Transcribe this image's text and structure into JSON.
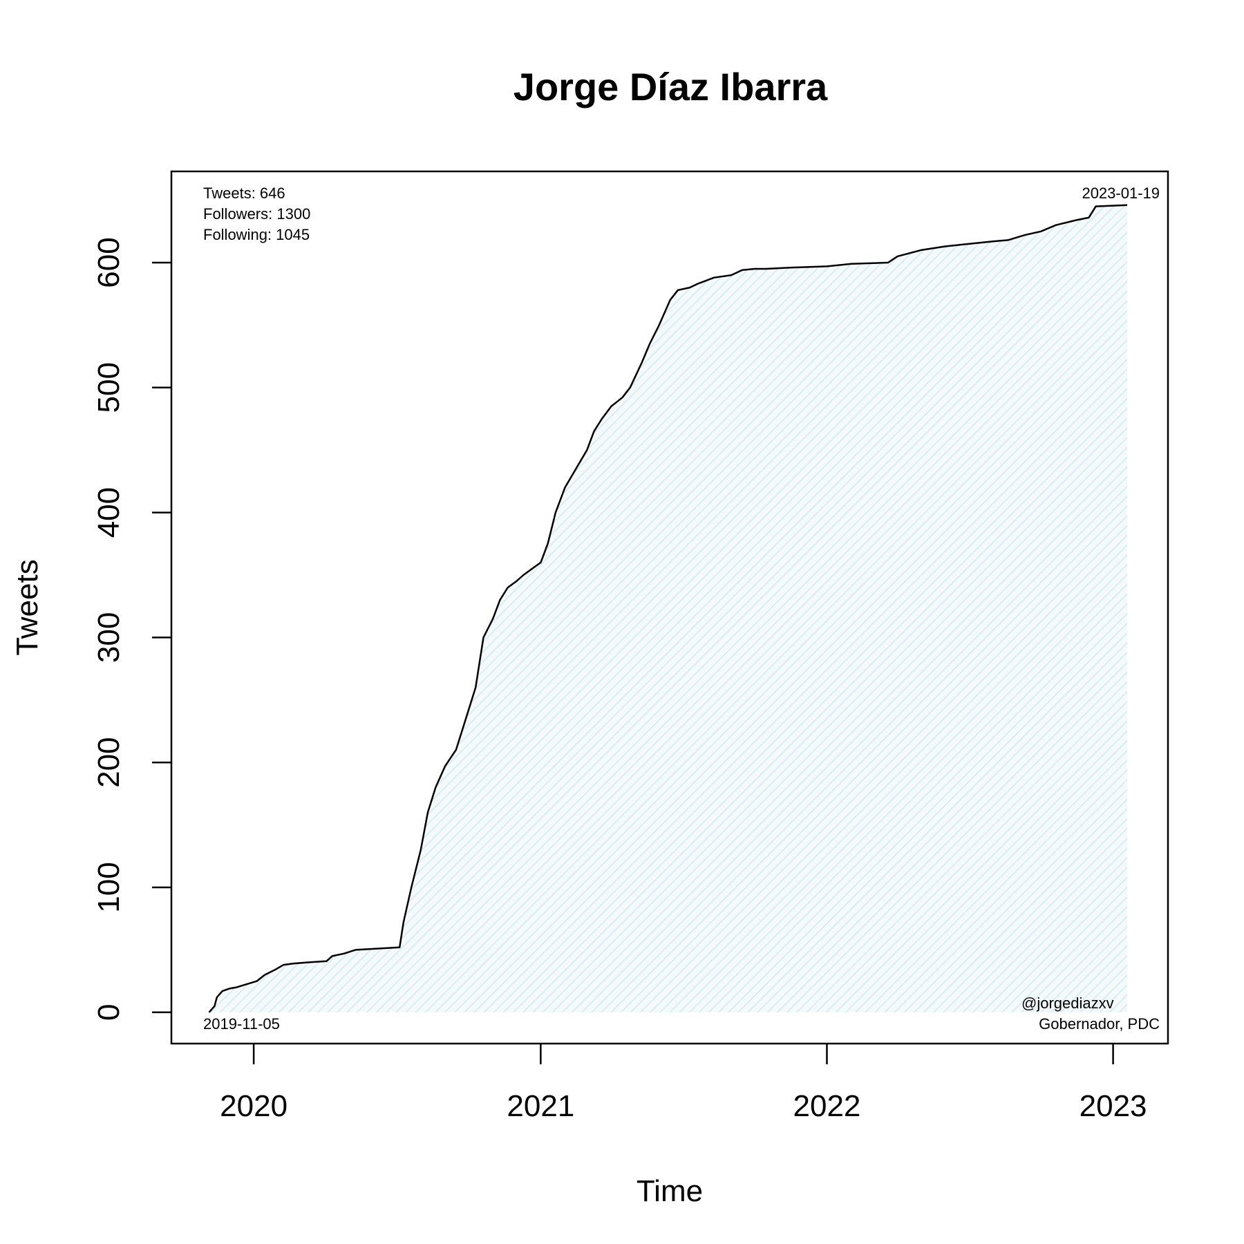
{
  "chart_data": {
    "type": "area",
    "title": "Jorge Díaz Ibarra",
    "xlabel": "Time",
    "ylabel": "Tweets",
    "xlim": [
      "2019-09-18",
      "2023-03-12"
    ],
    "ylim": [
      -25,
      673
    ],
    "x_ticks": [
      "2020",
      "2021",
      "2022",
      "2023"
    ],
    "y_ticks": [
      "0",
      "100",
      "200",
      "300",
      "400",
      "500",
      "600"
    ],
    "stats": {
      "tweets": "Tweets: 646",
      "followers": "Followers: 1300",
      "following": "Following: 1045"
    },
    "start_label": "2019-11-05",
    "end_label": "2023-01-19",
    "handle": "@jorgediazxv",
    "description": "Gobernador, PDC",
    "line_color": "#000000",
    "fill_color": "#e6f3f6",
    "grid": false,
    "series": [
      {
        "x": [
          "2019-11-05",
          "2019-11-12",
          "2019-11-15",
          "2019-11-22",
          "2019-12-01",
          "2019-12-10",
          "2020-01-05",
          "2020-01-15",
          "2020-01-28",
          "2020-02-08",
          "2020-02-20",
          "2020-03-10",
          "2020-04-03",
          "2020-04-10",
          "2020-04-25",
          "2020-05-10",
          "2020-07-05",
          "2020-07-10",
          "2020-07-20",
          "2020-08-01",
          "2020-08-10",
          "2020-08-20",
          "2020-09-01",
          "2020-09-15",
          "2020-09-25",
          "2020-10-10",
          "2020-10-20",
          "2020-11-01",
          "2020-11-10",
          "2020-11-20",
          "2020-12-01",
          "2020-12-10",
          "2021-01-01",
          "2021-01-10",
          "2021-01-20",
          "2021-02-01",
          "2021-02-15",
          "2021-03-01",
          "2021-03-10",
          "2021-03-20",
          "2021-04-01",
          "2021-04-15",
          "2021-04-25",
          "2021-05-10",
          "2021-05-20",
          "2021-06-01",
          "2021-06-15",
          "2021-06-25",
          "2021-07-10",
          "2021-07-20",
          "2021-08-10",
          "2021-09-01",
          "2021-09-15",
          "2021-10-01",
          "2021-10-15",
          "2021-11-15",
          "2022-01-01",
          "2022-02-01",
          "2022-03-20",
          "2022-04-01",
          "2022-05-01",
          "2022-06-01",
          "2022-07-01",
          "2022-08-01",
          "2022-08-20",
          "2022-09-10",
          "2022-10-01",
          "2022-10-20",
          "2022-11-15",
          "2022-12-01",
          "2022-12-10",
          "2023-01-19"
        ],
        "y": [
          0,
          5,
          12,
          17,
          19,
          20,
          25,
          30,
          34,
          38,
          39,
          40,
          41,
          45,
          47,
          50,
          52,
          72,
          100,
          130,
          160,
          180,
          197,
          210,
          230,
          260,
          300,
          315,
          330,
          340,
          345,
          350,
          360,
          375,
          400,
          420,
          435,
          450,
          465,
          475,
          485,
          492,
          500,
          520,
          535,
          550,
          570,
          578,
          580,
          583,
          588,
          590,
          594,
          595,
          595,
          596,
          597,
          599,
          600,
          605,
          610,
          613,
          615,
          617,
          618,
          622,
          625,
          630,
          634,
          636,
          645,
          646
        ]
      }
    ]
  }
}
